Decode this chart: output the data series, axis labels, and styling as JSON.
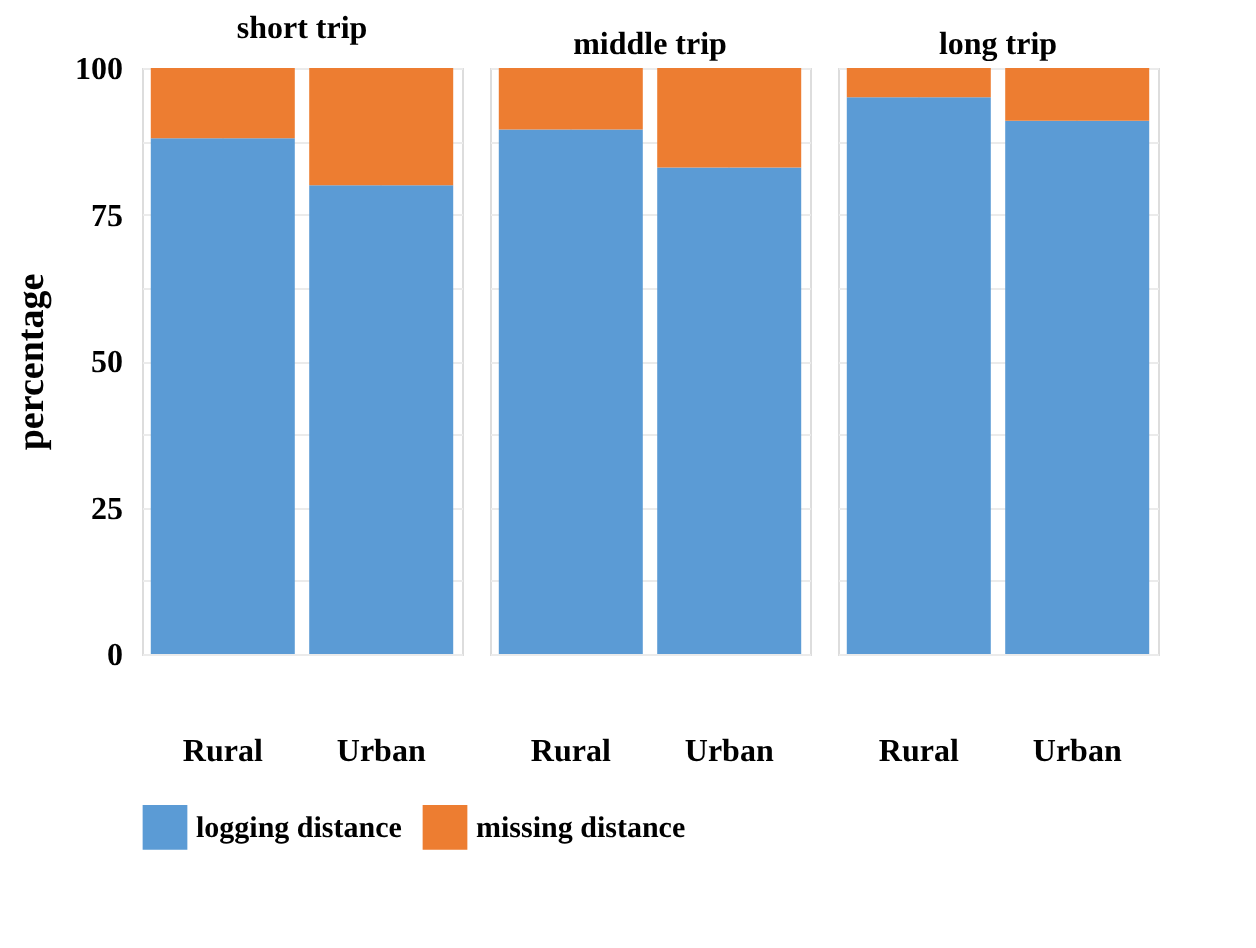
{
  "chart_data": [
    {
      "type": "bar",
      "stacked": true,
      "title": "short trip",
      "ylabel": "percentage",
      "categories": [
        "Rural",
        "Urban"
      ],
      "series": [
        {
          "name": "logging distance",
          "color": "#5b9bd5",
          "values": [
            88,
            80
          ]
        },
        {
          "name": "missing distance",
          "color": "#ed7d31",
          "values": [
            12,
            20
          ]
        }
      ],
      "ylim": [
        0,
        100
      ],
      "yticks": [
        0,
        {
          "value": 12.5,
          "label": null
        },
        25,
        {
          "value": 37.5,
          "label": null
        },
        50,
        {
          "value": 62.5,
          "label": null
        },
        75,
        {
          "value": 87.5,
          "label": null
        },
        100
      ],
      "grid": true,
      "legend": "bottom"
    },
    {
      "type": "bar",
      "stacked": true,
      "title": "middle trip",
      "categories": [
        "Rural",
        "Urban"
      ],
      "series": [
        {
          "name": "logging distance",
          "color": "#5b9bd5",
          "values": [
            89.5,
            83
          ]
        },
        {
          "name": "missing distance",
          "color": "#ed7d31",
          "values": [
            10.5,
            17
          ]
        }
      ],
      "ylim": [
        0,
        100
      ],
      "yticks": [
        0,
        {
          "value": 12.5,
          "label": null
        },
        25,
        {
          "value": 37.5,
          "label": null
        },
        50,
        {
          "value": 62.5,
          "label": null
        },
        75,
        {
          "value": 87.5,
          "label": null
        },
        100
      ],
      "grid": true,
      "tick_labels": "x"
    },
    {
      "type": "bar",
      "stacked": true,
      "title": "long trip",
      "categories": [
        "Rural",
        "Urban"
      ],
      "series": [
        {
          "name": "logging distance",
          "color": "#5b9bd5",
          "values": [
            95,
            91
          ]
        },
        {
          "name": "missing distance",
          "color": "#ed7d31",
          "values": [
            5,
            9
          ]
        }
      ],
      "ylim": [
        0,
        100
      ],
      "yticks": [
        0,
        {
          "value": 12.5,
          "label": null
        },
        25,
        {
          "value": 37.5,
          "label": null
        },
        50,
        {
          "value": 62.5,
          "label": null
        },
        75,
        {
          "value": 87.5,
          "label": null
        },
        100
      ],
      "grid": true,
      "tick_labels": "x"
    }
  ]
}
